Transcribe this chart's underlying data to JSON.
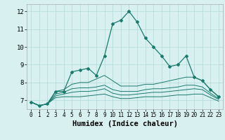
{
  "x": [
    0,
    1,
    2,
    3,
    4,
    5,
    6,
    7,
    8,
    9,
    10,
    11,
    12,
    13,
    14,
    15,
    16,
    17,
    18,
    19,
    20,
    21,
    22,
    23
  ],
  "line_main": [
    6.9,
    6.7,
    6.8,
    7.5,
    7.5,
    8.6,
    8.7,
    8.8,
    8.4,
    9.5,
    11.3,
    11.5,
    12.0,
    11.4,
    10.5,
    10.0,
    9.5,
    8.9,
    9.0,
    9.5,
    8.3,
    8.1,
    7.6,
    7.2
  ],
  "line_max": [
    6.9,
    6.7,
    6.8,
    7.5,
    7.6,
    7.9,
    8.0,
    8.0,
    8.2,
    8.4,
    8.1,
    7.8,
    7.8,
    7.8,
    7.9,
    7.9,
    8.0,
    8.1,
    8.2,
    8.3,
    8.3,
    8.1,
    7.6,
    7.2
  ],
  "line_mid1": [
    6.9,
    6.7,
    6.8,
    7.35,
    7.45,
    7.65,
    7.7,
    7.7,
    7.75,
    7.85,
    7.6,
    7.5,
    7.5,
    7.5,
    7.6,
    7.65,
    7.65,
    7.7,
    7.75,
    7.85,
    7.85,
    7.75,
    7.4,
    7.1
  ],
  "line_mid2": [
    6.9,
    6.7,
    6.8,
    7.25,
    7.35,
    7.45,
    7.5,
    7.5,
    7.55,
    7.65,
    7.4,
    7.3,
    7.3,
    7.35,
    7.4,
    7.45,
    7.45,
    7.5,
    7.55,
    7.6,
    7.65,
    7.6,
    7.3,
    7.05
  ],
  "line_min": [
    6.9,
    6.7,
    6.8,
    7.15,
    7.2,
    7.2,
    7.2,
    7.25,
    7.3,
    7.35,
    7.2,
    7.1,
    7.1,
    7.15,
    7.2,
    7.2,
    7.2,
    7.25,
    7.3,
    7.3,
    7.35,
    7.35,
    7.15,
    6.95
  ],
  "line_color": "#1a7a6e",
  "bg_color": "#d8f0f0",
  "grid_color": "#b0d8d8",
  "ylim": [
    6.5,
    12.4
  ],
  "yticks": [
    7,
    8,
    9,
    10,
    11,
    12
  ],
  "xlabel": "Humidex (Indice chaleur)",
  "xlabel_fontsize": 7.5
}
